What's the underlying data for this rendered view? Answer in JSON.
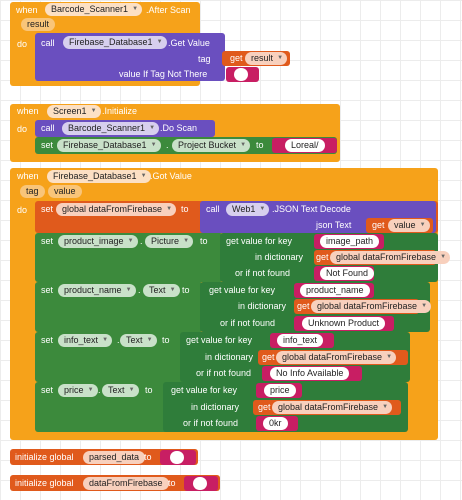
{
  "block1": {
    "when": "when",
    "component": "Barcode_Scanner1",
    "event": ".After Scan",
    "param": "result",
    "do": "do",
    "call": "call",
    "db": "Firebase_Database1",
    "method": ".Get Value",
    "tag_label": "tag",
    "get": "get",
    "get_var": "result",
    "default_label": "value If Tag Not There",
    "empty_str": ""
  },
  "block2": {
    "when": "when",
    "component": "Screen1",
    "event": ".Initialize",
    "do": "do",
    "call": "call",
    "scanner": "Barcode_Scanner1",
    "method": ".Do Scan",
    "set": "set",
    "db": "Firebase_Database1",
    "prop": "Project Bucket",
    "to": "to",
    "value": "Loreal/"
  },
  "block3": {
    "when": "when",
    "component": "Firebase_Database1",
    "event": ".Got Value",
    "param1": "tag",
    "param2": "value",
    "do": "do",
    "set_global": "set",
    "global_var": "global dataFromFirebase",
    "to": "to",
    "call": "call",
    "web": "Web1",
    "method": ".JSON Text Decode",
    "json_text": "json Text",
    "get": "get",
    "get_var": "value",
    "rows": [
      {
        "set": "set",
        "comp": "product_image",
        "prop": "Picture",
        "to": "to",
        "gvk": "get value for key",
        "key": "image_path",
        "in_dict": "in dictionary",
        "get": "get",
        "dict": "global dataFromFirebase",
        "ifnf": "or if not found",
        "nf": "Not Found"
      },
      {
        "set": "set",
        "comp": "product_name",
        "prop": "Text",
        "to": "to",
        "gvk": "get value for key",
        "key": "product_name",
        "in_dict": "in dictionary",
        "get": "get",
        "dict": "global dataFromFirebase",
        "ifnf": "or if not found",
        "nf": "Unknown Product"
      },
      {
        "set": "set",
        "comp": "info_text",
        "prop": "Text",
        "to": "to",
        "gvk": "get value for key",
        "key": "info_text",
        "in_dict": "in dictionary",
        "get": "get",
        "dict": "global dataFromFirebase",
        "ifnf": "or if not found",
        "nf": "No Info Available"
      },
      {
        "set": "set",
        "comp": "price",
        "prop": "Text",
        "to": "to",
        "gvk": "get value for key",
        "key": "price",
        "in_dict": "in dictionary",
        "get": "get",
        "dict": "global dataFromFirebase",
        "ifnf": "or if not found",
        "nf": "0kr"
      }
    ]
  },
  "init1": {
    "label": "initialize global",
    "name": "parsed_data",
    "to": "to",
    "value": ""
  },
  "init2": {
    "label": "initialize global",
    "name": "dataFromFirebase",
    "to": "to",
    "value": ""
  },
  "colors": {
    "event": "#f6a21a",
    "component": "#6a4fbf",
    "setter": "#3c8a3c",
    "variable": "#e05a1c",
    "text": "#c81e63"
  }
}
